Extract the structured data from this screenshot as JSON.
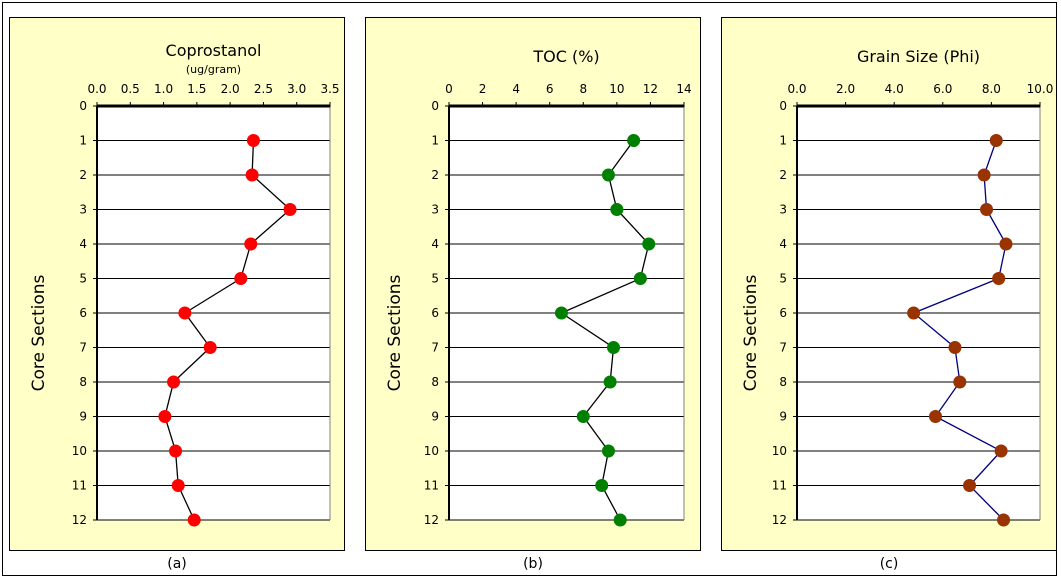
{
  "chart_data": [
    {
      "type": "scatter",
      "title": "Coprostanol",
      "subtitle": "(ug/gram)",
      "ylabel": "Core Sections",
      "xlim": [
        0,
        3.5
      ],
      "xticks": [
        "0.0",
        "0.5",
        "1.0",
        "1.5",
        "2.0",
        "2.5",
        "3.0",
        "3.5"
      ],
      "xtick_values": [
        0,
        0.5,
        1,
        1.5,
        2,
        2.5,
        3,
        3.5
      ],
      "ylim": [
        0,
        12
      ],
      "yticks": [
        "0",
        "1",
        "2",
        "3",
        "4",
        "5",
        "6",
        "7",
        "8",
        "9",
        "10",
        "11",
        "12"
      ],
      "x": [
        2.35,
        2.33,
        2.9,
        2.31,
        2.16,
        1.32,
        1.7,
        1.15,
        1.02,
        1.18,
        1.22,
        1.46
      ],
      "y": [
        1,
        2,
        3,
        4,
        5,
        6,
        7,
        8,
        9,
        10,
        11,
        12
      ],
      "marker_color": "#ff0000",
      "line_color": "#000000",
      "grid": true,
      "caption": "(a)"
    },
    {
      "type": "scatter",
      "title": "TOC (%)",
      "subtitle": "",
      "ylabel": "Core Sections",
      "xlim": [
        0,
        14
      ],
      "xticks": [
        "0",
        "2",
        "4",
        "6",
        "8",
        "10",
        "12",
        "14"
      ],
      "xtick_values": [
        0,
        2,
        4,
        6,
        8,
        10,
        12,
        14
      ],
      "ylim": [
        0,
        12
      ],
      "yticks": [
        "0",
        "1",
        "2",
        "3",
        "4",
        "5",
        "6",
        "7",
        "8",
        "9",
        "10",
        "11",
        "12"
      ],
      "x": [
        11.0,
        9.5,
        10.0,
        11.9,
        11.4,
        6.7,
        9.8,
        9.6,
        8.0,
        9.5,
        9.1,
        10.2
      ],
      "y": [
        1,
        2,
        3,
        4,
        5,
        6,
        7,
        8,
        9,
        10,
        11,
        12
      ],
      "marker_color": "#008000",
      "line_color": "#000000",
      "grid": true,
      "caption": "(b)"
    },
    {
      "type": "scatter",
      "title": "Grain Size (Phi)",
      "subtitle": "",
      "ylabel": "Core Sections",
      "xlim": [
        0,
        10
      ],
      "xticks": [
        "0.0",
        "2.0",
        "4.0",
        "6.0",
        "8.0",
        "10.0"
      ],
      "xtick_values": [
        0,
        2,
        4,
        6,
        8,
        10
      ],
      "ylim": [
        0,
        12
      ],
      "yticks": [
        "0",
        "1",
        "2",
        "3",
        "4",
        "5",
        "6",
        "7",
        "8",
        "9",
        "10",
        "11",
        "12"
      ],
      "x": [
        8.2,
        7.7,
        7.8,
        8.6,
        8.3,
        4.8,
        6.5,
        6.7,
        5.7,
        8.4,
        7.1,
        8.5
      ],
      "y": [
        1,
        2,
        3,
        4,
        5,
        6,
        7,
        8,
        9,
        10,
        11,
        12
      ],
      "marker_color": "#993300",
      "line_color": "#000080",
      "grid": true,
      "caption": "(c)"
    }
  ]
}
